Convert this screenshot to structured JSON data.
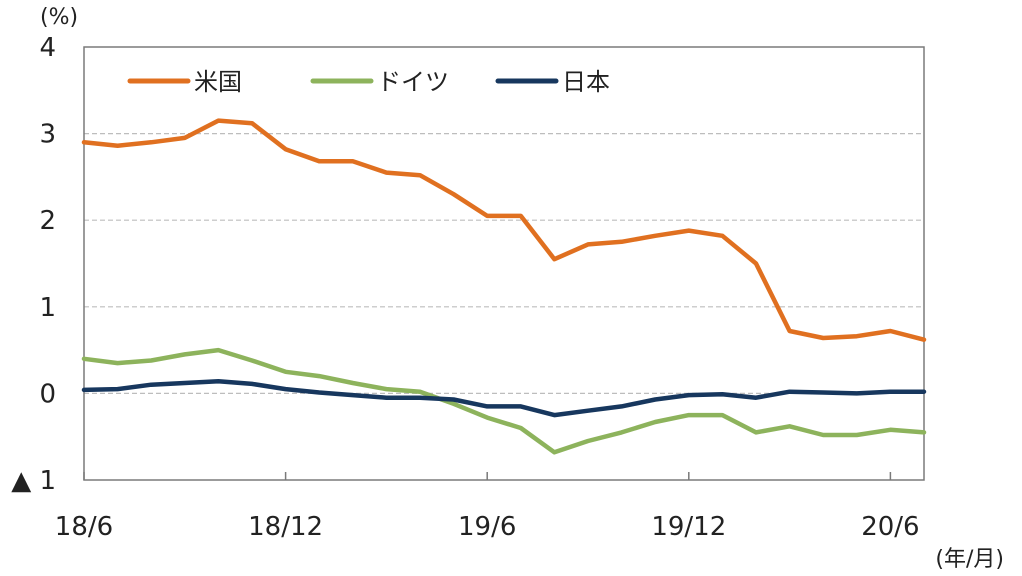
{
  "chart_data": {
    "type": "line",
    "y_unit": "(%)",
    "x_unit": "(年/月)",
    "ylim": [
      -1,
      4
    ],
    "y_ticks": [
      {
        "value": 4,
        "label": "4"
      },
      {
        "value": 3,
        "label": "3"
      },
      {
        "value": 2,
        "label": "2"
      },
      {
        "value": 1,
        "label": "1"
      },
      {
        "value": 0,
        "label": "0"
      },
      {
        "value": -1,
        "label": "▲ 1"
      }
    ],
    "x_ticks": [
      {
        "value": "2018-06",
        "label": "18/6"
      },
      {
        "value": "2018-12",
        "label": "18/12"
      },
      {
        "value": "2019-06",
        "label": "19/6"
      },
      {
        "value": "2019-12",
        "label": "19/12"
      },
      {
        "value": "2020-06",
        "label": "20/6"
      }
    ],
    "x_range": [
      "2018-06",
      "2020-07"
    ],
    "grid": "horizontal dashed",
    "legend_position": "top",
    "series": [
      {
        "name": "米国",
        "color": "#e07020",
        "points": [
          [
            "2018-06",
            2.9
          ],
          [
            "2018-07",
            2.86
          ],
          [
            "2018-08",
            2.9
          ],
          [
            "2018-09",
            2.95
          ],
          [
            "2018-10",
            3.15
          ],
          [
            "2018-11",
            3.12
          ],
          [
            "2018-12",
            2.82
          ],
          [
            "2019-01",
            2.68
          ],
          [
            "2019-02",
            2.68
          ],
          [
            "2019-03",
            2.55
          ],
          [
            "2019-04",
            2.52
          ],
          [
            "2019-05",
            2.3
          ],
          [
            "2019-06",
            2.05
          ],
          [
            "2019-07",
            2.05
          ],
          [
            "2019-08",
            1.55
          ],
          [
            "2019-09",
            1.72
          ],
          [
            "2019-10",
            1.75
          ],
          [
            "2019-11",
            1.82
          ],
          [
            "2019-12",
            1.88
          ],
          [
            "2020-01",
            1.82
          ],
          [
            "2020-02",
            1.5
          ],
          [
            "2020-03",
            0.72
          ],
          [
            "2020-04",
            0.64
          ],
          [
            "2020-05",
            0.66
          ],
          [
            "2020-06",
            0.72
          ],
          [
            "2020-07",
            0.62
          ]
        ]
      },
      {
        "name": "ドイツ",
        "color": "#8db35c",
        "points": [
          [
            "2018-06",
            0.4
          ],
          [
            "2018-07",
            0.35
          ],
          [
            "2018-08",
            0.38
          ],
          [
            "2018-09",
            0.45
          ],
          [
            "2018-10",
            0.5
          ],
          [
            "2018-11",
            0.38
          ],
          [
            "2018-12",
            0.25
          ],
          [
            "2019-01",
            0.2
          ],
          [
            "2019-02",
            0.12
          ],
          [
            "2019-03",
            0.05
          ],
          [
            "2019-04",
            0.02
          ],
          [
            "2019-05",
            -0.12
          ],
          [
            "2019-06",
            -0.28
          ],
          [
            "2019-07",
            -0.4
          ],
          [
            "2019-08",
            -0.68
          ],
          [
            "2019-09",
            -0.55
          ],
          [
            "2019-10",
            -0.45
          ],
          [
            "2019-11",
            -0.33
          ],
          [
            "2019-12",
            -0.25
          ],
          [
            "2020-01",
            -0.25
          ],
          [
            "2020-02",
            -0.45
          ],
          [
            "2020-03",
            -0.38
          ],
          [
            "2020-04",
            -0.48
          ],
          [
            "2020-05",
            -0.48
          ],
          [
            "2020-06",
            -0.42
          ],
          [
            "2020-07",
            -0.45
          ]
        ]
      },
      {
        "name": "日本",
        "color": "#17375e",
        "points": [
          [
            "2018-06",
            0.04
          ],
          [
            "2018-07",
            0.05
          ],
          [
            "2018-08",
            0.1
          ],
          [
            "2018-09",
            0.12
          ],
          [
            "2018-10",
            0.14
          ],
          [
            "2018-11",
            0.11
          ],
          [
            "2018-12",
            0.05
          ],
          [
            "2019-01",
            0.01
          ],
          [
            "2019-02",
            -0.02
          ],
          [
            "2019-03",
            -0.05
          ],
          [
            "2019-04",
            -0.05
          ],
          [
            "2019-05",
            -0.07
          ],
          [
            "2019-06",
            -0.15
          ],
          [
            "2019-07",
            -0.15
          ],
          [
            "2019-08",
            -0.25
          ],
          [
            "2019-09",
            -0.2
          ],
          [
            "2019-10",
            -0.15
          ],
          [
            "2019-11",
            -0.07
          ],
          [
            "2019-12",
            -0.02
          ],
          [
            "2020-01",
            -0.01
          ],
          [
            "2020-02",
            -0.05
          ],
          [
            "2020-03",
            0.02
          ],
          [
            "2020-04",
            0.01
          ],
          [
            "2020-05",
            0.0
          ],
          [
            "2020-06",
            0.02
          ],
          [
            "2020-07",
            0.02
          ]
        ]
      }
    ]
  }
}
